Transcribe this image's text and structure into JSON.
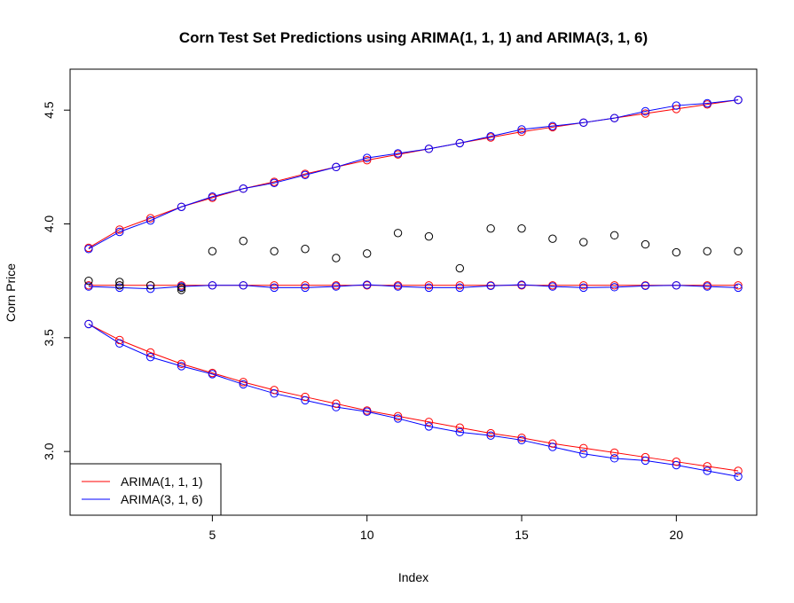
{
  "chart_data": {
    "type": "line",
    "title": "Corn Test Set Predictions using ARIMA(1, 1, 1) and ARIMA(3, 1, 6)",
    "xlabel": "Index",
    "ylabel": "Corn Price",
    "xlim": [
      0.4,
      22.6
    ],
    "ylim": [
      2.72,
      4.68
    ],
    "xticks": [
      5,
      10,
      15,
      20
    ],
    "yticks": [
      3.0,
      3.5,
      4.0,
      4.5
    ],
    "grid": false,
    "legend_position": "bottom-left",
    "x": [
      1,
      2,
      3,
      4,
      5,
      6,
      7,
      8,
      9,
      10,
      11,
      12,
      13,
      14,
      15,
      16,
      17,
      18,
      19,
      20,
      21,
      22
    ],
    "actual": {
      "color": "#000000",
      "points": [
        [
          1,
          3.75
        ],
        [
          2,
          3.745
        ],
        [
          2,
          3.73
        ],
        [
          3,
          3.73
        ],
        [
          4,
          3.72
        ],
        [
          4,
          3.71
        ],
        [
          5,
          3.88
        ],
        [
          6,
          3.925
        ],
        [
          7,
          3.88
        ],
        [
          8,
          3.89
        ],
        [
          9,
          3.85
        ],
        [
          10,
          3.87
        ],
        [
          11,
          3.96
        ],
        [
          12,
          3.945
        ],
        [
          13,
          3.805
        ],
        [
          14,
          3.98
        ],
        [
          15,
          3.98
        ],
        [
          16,
          3.935
        ],
        [
          17,
          3.92
        ],
        [
          18,
          3.95
        ],
        [
          19,
          3.91
        ],
        [
          20,
          3.875
        ],
        [
          21,
          3.88
        ],
        [
          22,
          3.88
        ]
      ]
    },
    "series": [
      {
        "name": "ARIMA(1, 1, 1)",
        "color": "#ff0000",
        "forecast": [
          3.73,
          3.73,
          3.73,
          3.73,
          3.73,
          3.73,
          3.73,
          3.73,
          3.73,
          3.73,
          3.73,
          3.73,
          3.73,
          3.73,
          3.73,
          3.73,
          3.73,
          3.73,
          3.73,
          3.73,
          3.73,
          3.73
        ],
        "upper": [
          3.895,
          3.975,
          4.025,
          4.075,
          4.115,
          4.155,
          4.185,
          4.22,
          4.25,
          4.28,
          4.305,
          4.33,
          4.355,
          4.38,
          4.405,
          4.425,
          4.445,
          4.465,
          4.485,
          4.505,
          4.525,
          4.545
        ],
        "lower": [
          3.56,
          3.49,
          3.435,
          3.385,
          3.345,
          3.305,
          3.27,
          3.24,
          3.21,
          3.18,
          3.155,
          3.13,
          3.105,
          3.08,
          3.06,
          3.035,
          3.015,
          2.995,
          2.975,
          2.955,
          2.935,
          2.915
        ]
      },
      {
        "name": "ARIMA(3, 1, 6)",
        "color": "#0000ff",
        "forecast": [
          3.725,
          3.72,
          3.715,
          3.725,
          3.73,
          3.73,
          3.72,
          3.72,
          3.725,
          3.733,
          3.725,
          3.72,
          3.72,
          3.728,
          3.733,
          3.725,
          3.72,
          3.722,
          3.728,
          3.73,
          3.725,
          3.72
        ],
        "upper": [
          3.89,
          3.965,
          4.015,
          4.075,
          4.12,
          4.155,
          4.18,
          4.215,
          4.25,
          4.29,
          4.31,
          4.33,
          4.355,
          4.385,
          4.415,
          4.43,
          4.445,
          4.465,
          4.495,
          4.52,
          4.53,
          4.545
        ],
        "lower": [
          3.56,
          3.475,
          3.415,
          3.375,
          3.34,
          3.295,
          3.255,
          3.225,
          3.195,
          3.175,
          3.145,
          3.11,
          3.085,
          3.07,
          3.05,
          3.02,
          2.99,
          2.97,
          2.96,
          2.94,
          2.915,
          2.89
        ]
      }
    ]
  }
}
